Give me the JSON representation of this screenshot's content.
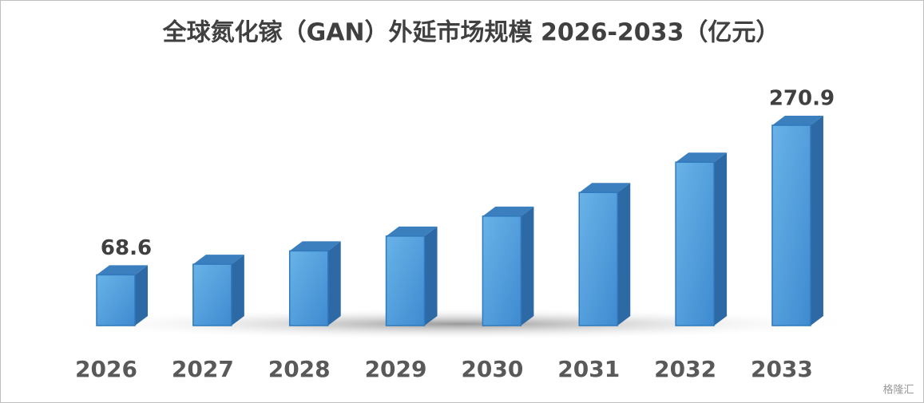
{
  "chart_data": {
    "type": "bar3d",
    "title": "全球氮化镓（GAN）外延市场规模 2026-2033（亿元）",
    "categories": [
      "2026",
      "2027",
      "2028",
      "2029",
      "2030",
      "2031",
      "2032",
      "2033"
    ],
    "values": [
      68.6,
      83,
      101,
      121,
      148,
      180,
      221,
      270.9
    ],
    "value_labels": [
      "68.6",
      null,
      null,
      null,
      null,
      null,
      null,
      "270.9"
    ],
    "color": "#4a98d8",
    "watermark": "格隆汇"
  }
}
